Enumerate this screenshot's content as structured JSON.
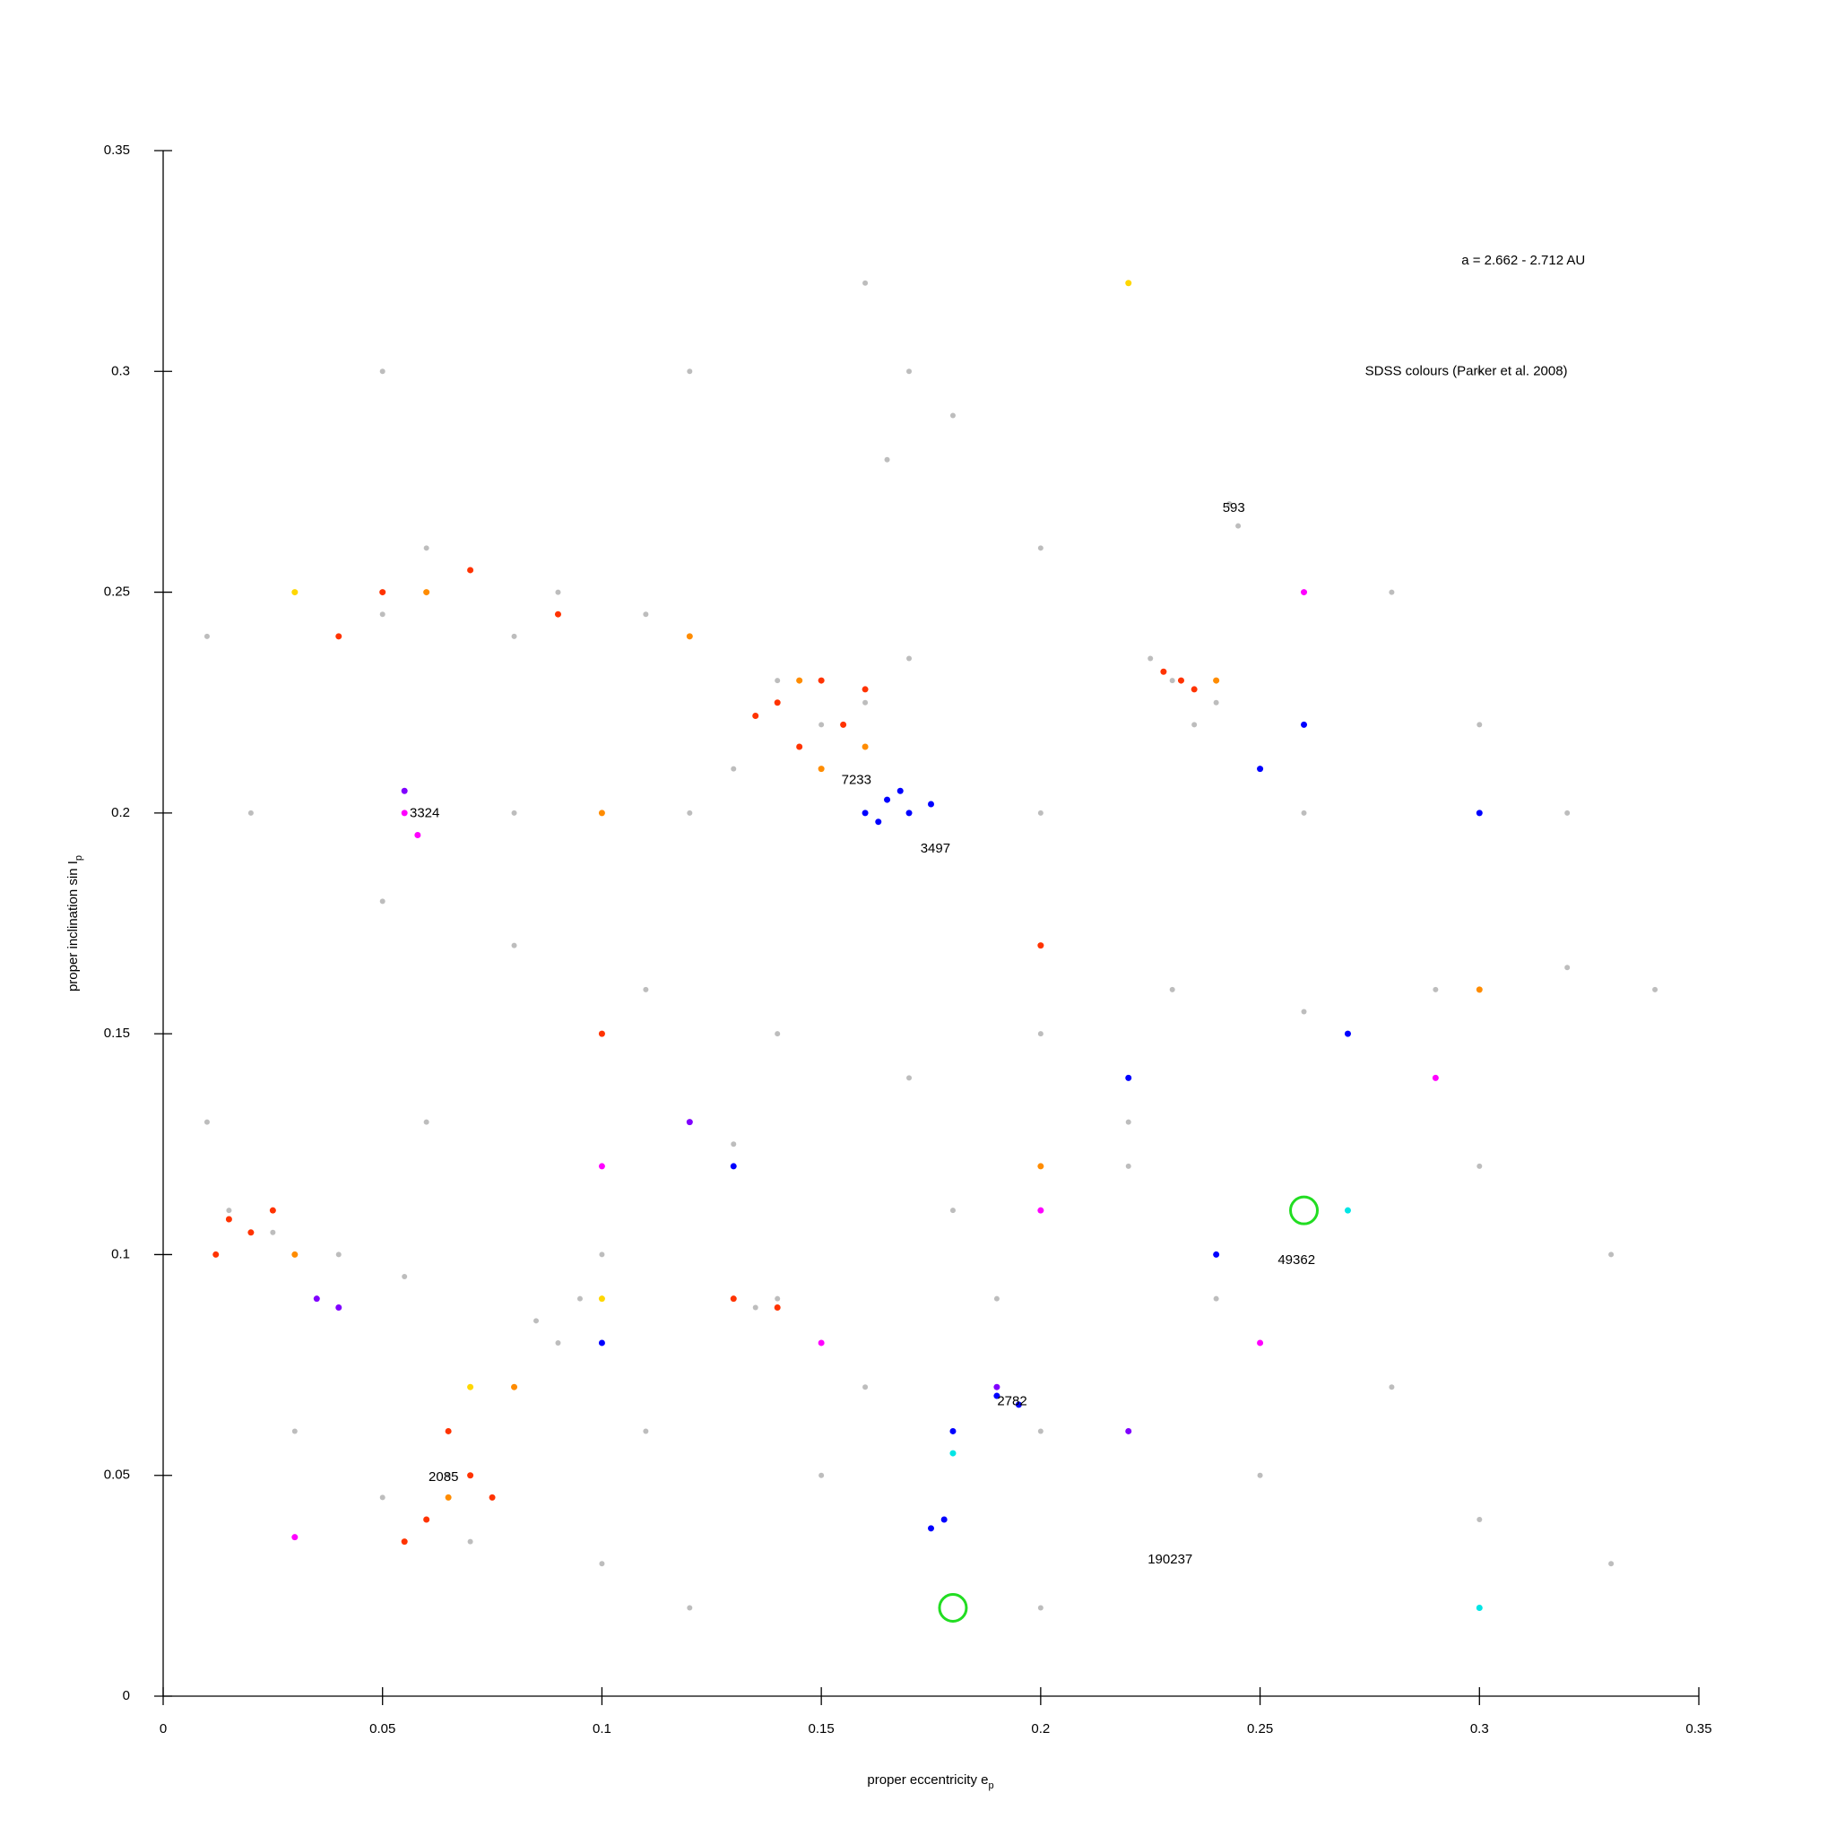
{
  "chart_data": {
    "type": "scatter",
    "xlabel": "proper eccentricity e",
    "xlabel_sub": "p",
    "ylabel": "proper inclination sin I",
    "ylabel_sub": "p",
    "xlim": [
      0,
      0.35
    ],
    "ylim": [
      0,
      0.35
    ],
    "xticks": [
      0,
      0.05,
      0.1,
      0.15,
      0.2,
      0.25,
      0.3,
      0.35
    ],
    "yticks": [
      0,
      0.05,
      0.1,
      0.15,
      0.2,
      0.25,
      0.3,
      0.35
    ],
    "annotations": [
      {
        "text": "a = 2.662 - 2.712 AU",
        "x": 0.31,
        "y": 0.325
      },
      {
        "text": "SDSS colours (Parker et al. 2008)",
        "x": 0.297,
        "y": 0.3
      },
      {
        "text": "593",
        "x": 0.244,
        "y": 0.269
      },
      {
        "text": "7233",
        "x": 0.158,
        "y": 0.2074
      },
      {
        "text": "3324",
        "x": 0.0596,
        "y": 0.1999
      },
      {
        "text": "3497",
        "x": 0.176,
        "y": 0.1918
      },
      {
        "text": "2085",
        "x": 0.0639,
        "y": 0.0495
      },
      {
        "text": "2782",
        "x": 0.1935,
        "y": 0.0667
      },
      {
        "text": "49362",
        "x": 0.2583,
        "y": 0.0987
      },
      {
        "text": "190237",
        "x": 0.2295,
        "y": 0.0309
      }
    ],
    "series": [
      {
        "color": "#bdbdbd",
        "marker": "dot",
        "x": [
          0.03,
          0.05,
          0.07,
          0.09,
          0.11,
          0.06,
          0.08,
          0.14,
          0.15,
          0.16,
          0.145,
          0.17,
          0.13,
          0.23,
          0.24,
          0.225,
          0.235,
          0.165,
          0.17,
          0.16,
          0.18,
          0.243,
          0.245,
          0.05,
          0.08,
          0.11,
          0.14,
          0.17,
          0.2,
          0.23,
          0.26,
          0.29,
          0.32,
          0.34,
          0.06,
          0.1,
          0.13,
          0.18,
          0.22,
          0.27,
          0.3,
          0.33,
          0.015,
          0.025,
          0.04,
          0.055,
          0.085,
          0.09,
          0.095,
          0.135,
          0.14,
          0.06,
          0.07,
          0.05,
          0.065,
          0.11,
          0.15,
          0.2,
          0.25,
          0.3,
          0.33,
          0.12,
          0.2,
          0.28,
          0.16,
          0.1,
          0.03,
          0.01,
          0.02,
          0.01,
          0.3,
          0.32,
          0.28,
          0.2,
          0.2,
          0.12,
          0.05,
          0.08,
          0.12,
          0.26,
          0.3,
          0.1,
          0.19,
          0.24,
          0.22
        ],
        "values": [
          0.25,
          0.245,
          0.255,
          0.25,
          0.245,
          0.26,
          0.24,
          0.23,
          0.22,
          0.225,
          0.215,
          0.235,
          0.21,
          0.23,
          0.225,
          0.235,
          0.22,
          0.28,
          0.3,
          0.32,
          0.29,
          0.27,
          0.265,
          0.18,
          0.17,
          0.16,
          0.15,
          0.14,
          0.15,
          0.16,
          0.155,
          0.16,
          0.165,
          0.16,
          0.13,
          0.12,
          0.125,
          0.11,
          0.12,
          0.11,
          0.12,
          0.1,
          0.11,
          0.105,
          0.1,
          0.095,
          0.085,
          0.08,
          0.09,
          0.088,
          0.09,
          0.04,
          0.035,
          0.045,
          0.05,
          0.06,
          0.05,
          0.06,
          0.05,
          0.04,
          0.03,
          0.02,
          0.02,
          0.07,
          0.07,
          0.03,
          0.06,
          0.13,
          0.2,
          0.24,
          0.22,
          0.2,
          0.25,
          0.2,
          0.26,
          0.3,
          0.3,
          0.2,
          0.2,
          0.2,
          0.3,
          0.1,
          0.09,
          0.09,
          0.13
        ]
      },
      {
        "color": "#ff3300",
        "marker": "dot",
        "x": [
          0.14,
          0.15,
          0.155,
          0.145,
          0.16,
          0.135,
          0.232,
          0.235,
          0.228,
          0.015,
          0.02,
          0.025,
          0.012,
          0.065,
          0.07,
          0.06,
          0.055,
          0.075,
          0.05,
          0.07,
          0.09,
          0.04,
          0.1,
          0.2,
          0.13,
          0.14
        ],
        "values": [
          0.225,
          0.23,
          0.22,
          0.215,
          0.228,
          0.222,
          0.23,
          0.228,
          0.232,
          0.108,
          0.105,
          0.11,
          0.1,
          0.06,
          0.05,
          0.04,
          0.035,
          0.045,
          0.25,
          0.255,
          0.245,
          0.24,
          0.15,
          0.17,
          0.09,
          0.088
        ]
      },
      {
        "color": "#ff8c00",
        "marker": "dot",
        "x": [
          0.145,
          0.16,
          0.15,
          0.03,
          0.065,
          0.08,
          0.06,
          0.12,
          0.24,
          0.3,
          0.2,
          0.1
        ],
        "values": [
          0.23,
          0.215,
          0.21,
          0.1,
          0.045,
          0.07,
          0.25,
          0.24,
          0.23,
          0.16,
          0.12,
          0.2
        ]
      },
      {
        "color": "#0000ff",
        "marker": "dot",
        "x": [
          0.16,
          0.165,
          0.17,
          0.163,
          0.168,
          0.175,
          0.19,
          0.195,
          0.178,
          0.175,
          0.22,
          0.25,
          0.26,
          0.27,
          0.13,
          0.1,
          0.18,
          0.24,
          0.3
        ],
        "values": [
          0.2,
          0.203,
          0.2,
          0.198,
          0.205,
          0.202,
          0.068,
          0.066,
          0.04,
          0.038,
          0.14,
          0.21,
          0.22,
          0.15,
          0.12,
          0.08,
          0.06,
          0.1,
          0.2
        ]
      },
      {
        "color": "#ff00ff",
        "marker": "dot",
        "x": [
          0.055,
          0.058,
          0.1,
          0.15,
          0.2,
          0.25,
          0.29,
          0.03,
          0.26
        ],
        "values": [
          0.2,
          0.195,
          0.12,
          0.08,
          0.11,
          0.08,
          0.14,
          0.036,
          0.25
        ]
      },
      {
        "color": "#8000ff",
        "marker": "dot",
        "x": [
          0.035,
          0.04,
          0.055,
          0.19,
          0.12,
          0.22
        ],
        "values": [
          0.09,
          0.088,
          0.205,
          0.07,
          0.13,
          0.06
        ]
      },
      {
        "color": "#ffd700",
        "marker": "dot",
        "x": [
          0.03,
          0.1,
          0.22,
          0.07
        ],
        "values": [
          0.25,
          0.09,
          0.32,
          0.07
        ]
      },
      {
        "color": "#00e5e5",
        "marker": "dot",
        "x": [
          0.27,
          0.18,
          0.3
        ],
        "values": [
          0.11,
          0.055,
          0.02
        ]
      },
      {
        "color": "#22dd22",
        "marker": "ring",
        "x": [
          0.26,
          0.18
        ],
        "values": [
          0.11,
          0.02
        ]
      }
    ]
  }
}
